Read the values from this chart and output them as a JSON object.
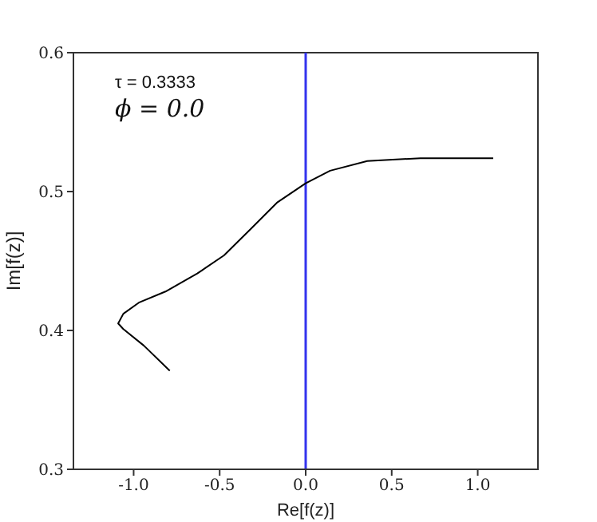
{
  "chart_data": {
    "type": "line",
    "xlabel": "Re[f(z)]",
    "ylabel": "Im[f(z)]",
    "x": [
      -0.79,
      -0.94,
      -1.06,
      -1.09,
      -1.06,
      -0.97,
      -0.815,
      -0.63,
      -0.475,
      -0.32,
      -0.167,
      0,
      0.142,
      0.358,
      0.667,
      1.09
    ],
    "series": [
      {
        "color": "#000000",
        "values": [
          0.371,
          0.389,
          0.401,
          0.405,
          0.412,
          0.42,
          0.428,
          0.441,
          0.454,
          0.473,
          0.492,
          0.506,
          0.515,
          0.522,
          0.524,
          0.524
        ]
      }
    ],
    "xlim": [
      -1.35,
      1.35
    ],
    "xticks": [
      {
        "value": -1,
        "label": "-1.0"
      },
      -0.5,
      {
        "value": 0,
        "label": "0.0"
      },
      0.5,
      {
        "value": 1,
        "label": "1.0"
      }
    ],
    "ylim": [
      0.3,
      0.6
    ],
    "yticks": [
      0.3,
      0.4,
      0.5,
      0.6
    ],
    "ref_lines": [
      {
        "axis": "x",
        "value": 0,
        "color": "#3333ee"
      }
    ],
    "annotations": [
      "τ = 0.3333",
      "ϕ = 0.0"
    ],
    "grid": false,
    "legend": false,
    "marker": "none",
    "line_style": "solid"
  }
}
